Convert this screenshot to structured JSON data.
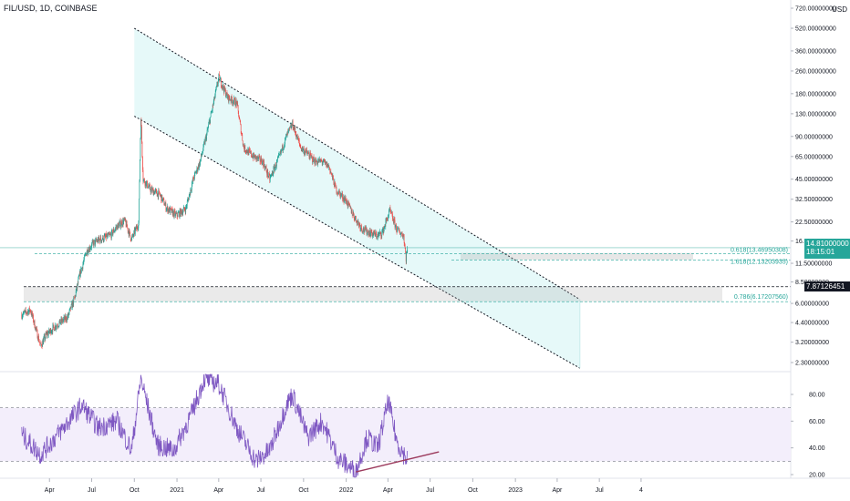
{
  "header": {
    "symbol": "FIL/USD, 1D, COINBASE",
    "currency": "USD"
  },
  "price_tags": {
    "current": "14.81000000",
    "countdown": "18:15:01",
    "level": "7.87126451"
  },
  "fib_labels": {
    "f618": "0.618(13.46950308)",
    "f1618": "1.618(12.13203935)",
    "f786": "0.786(6.17207560)"
  },
  "colors": {
    "up": "#26a69a",
    "down": "#ef5350",
    "price_line": "#26a69a",
    "channel_fill": "#e0f7f7",
    "rsi_line": "#7e57c2",
    "rsi_band": "#f3eefb",
    "trendline": "#9c3a5d"
  },
  "chart_data": [
    {
      "type": "candlestick",
      "title": "FIL/USD, 1D, COINBASE",
      "y_scale": "log",
      "y_unit": "USD",
      "y_ticks": [
        720,
        520,
        360,
        260,
        180,
        130,
        90,
        65,
        45,
        32.5,
        22.5,
        16.5,
        11.5,
        8.5,
        6,
        4.4,
        3.2,
        2.3
      ],
      "y_tick_labels": [
        "720.00000000",
        "520.00000000",
        "360.00000000",
        "260.00000000",
        "180.00000000",
        "130.00000000",
        "90.00000000",
        "65.00000000",
        "45.00000000",
        "32.50000000",
        "22.50000000",
        "16.50000000",
        "11.50000000",
        "8.50000000",
        "6.00000000",
        "4.40000000",
        "3.20000000",
        "2.30000000"
      ],
      "x_ticks": [
        "Apr",
        "Jul",
        "Oct",
        "2021",
        "Apr",
        "Jul",
        "Oct",
        "2022",
        "Apr",
        "Jul",
        "Oct",
        "2023",
        "Apr",
        "Jul",
        "4"
      ],
      "series_path": [
        [
          "2020-02-01",
          5.0
        ],
        [
          "2020-02-20",
          5.4
        ],
        [
          "2020-03-13",
          3.0
        ],
        [
          "2020-03-25",
          3.6
        ],
        [
          "2020-04-15",
          4.2
        ],
        [
          "2020-05-10",
          4.8
        ],
        [
          "2020-05-25",
          6.5
        ],
        [
          "2020-06-05",
          9.5
        ],
        [
          "2020-06-20",
          14.0
        ],
        [
          "2020-07-05",
          16.0
        ],
        [
          "2020-07-20",
          17.0
        ],
        [
          "2020-08-10",
          18.0
        ],
        [
          "2020-08-25",
          21.0
        ],
        [
          "2020-09-10",
          23.0
        ],
        [
          "2020-09-25",
          17.0
        ],
        [
          "2020-10-10",
          22.0
        ],
        [
          "2020-10-15",
          125.0
        ],
        [
          "2020-10-20",
          45.0
        ],
        [
          "2020-11-05",
          38.0
        ],
        [
          "2020-11-25",
          35.0
        ],
        [
          "2020-12-10",
          28.0
        ],
        [
          "2020-12-31",
          25.0
        ],
        [
          "2021-01-20",
          28.0
        ],
        [
          "2021-02-05",
          45.0
        ],
        [
          "2021-02-20",
          60.0
        ],
        [
          "2021-03-05",
          90.0
        ],
        [
          "2021-03-20",
          150.0
        ],
        [
          "2021-04-01",
          235.0
        ],
        [
          "2021-04-20",
          170.0
        ],
        [
          "2021-05-10",
          155.0
        ],
        [
          "2021-05-25",
          75.0
        ],
        [
          "2021-06-15",
          65.0
        ],
        [
          "2021-07-05",
          60.0
        ],
        [
          "2021-07-20",
          45.0
        ],
        [
          "2021-08-10",
          65.0
        ],
        [
          "2021-08-25",
          90.0
        ],
        [
          "2021-09-07",
          110.0
        ],
        [
          "2021-09-25",
          75.0
        ],
        [
          "2021-10-10",
          68.0
        ],
        [
          "2021-10-25",
          60.0
        ],
        [
          "2021-11-10",
          60.0
        ],
        [
          "2021-11-25",
          55.0
        ],
        [
          "2021-12-10",
          38.0
        ],
        [
          "2021-12-31",
          32.0
        ],
        [
          "2022-01-20",
          24.0
        ],
        [
          "2022-02-05",
          20.0
        ],
        [
          "2022-02-20",
          19.0
        ],
        [
          "2022-03-10",
          18.0
        ],
        [
          "2022-03-20",
          19.0
        ],
        [
          "2022-04-05",
          27.0
        ],
        [
          "2022-04-20",
          20.0
        ],
        [
          "2022-05-05",
          18.0
        ],
        [
          "2022-05-10",
          12.5
        ],
        [
          "2022-05-13",
          14.81
        ]
      ],
      "last_price": 14.81,
      "annotations": {
        "descending_channel_upper": [
          [
            "2020-10-01",
            520
          ],
          [
            "2023-05-20",
            6.4
          ]
        ],
        "descending_channel_lower": [
          [
            "2020-10-01",
            125
          ],
          [
            "2023-05-20",
            2.1
          ]
        ],
        "horizontal_level": 7.87126451,
        "fib_0618": 13.46950308,
        "fib_1618": 12.13203935,
        "fib_0786": 6.1720756
      }
    },
    {
      "type": "line",
      "name": "RSI",
      "y_ticks": [
        80,
        60,
        40,
        20
      ],
      "y_tick_labels": [
        "80.00",
        "60.00",
        "40.00",
        "20.00"
      ],
      "band": [
        30,
        70
      ],
      "values_path": [
        [
          "2020-02-01",
          50
        ],
        [
          "2020-03-13",
          35
        ],
        [
          "2020-05-01",
          55
        ],
        [
          "2020-06-10",
          72
        ],
        [
          "2020-07-15",
          55
        ],
        [
          "2020-08-25",
          60
        ],
        [
          "2020-09-25",
          38
        ],
        [
          "2020-10-15",
          92
        ],
        [
          "2020-11-20",
          42
        ],
        [
          "2020-12-25",
          38
        ],
        [
          "2021-02-01",
          65
        ],
        [
          "2021-03-01",
          92
        ],
        [
          "2021-04-01",
          88
        ],
        [
          "2021-05-10",
          55
        ],
        [
          "2021-06-20",
          30
        ],
        [
          "2021-07-20",
          38
        ],
        [
          "2021-08-25",
          72
        ],
        [
          "2021-09-07",
          80
        ],
        [
          "2021-10-10",
          48
        ],
        [
          "2021-11-10",
          60
        ],
        [
          "2021-12-15",
          32
        ],
        [
          "2022-01-22",
          22
        ],
        [
          "2022-02-15",
          48
        ],
        [
          "2022-03-10",
          40
        ],
        [
          "2022-04-02",
          75
        ],
        [
          "2022-04-20",
          45
        ],
        [
          "2022-05-12",
          31
        ],
        [
          "2022-05-13",
          33
        ]
      ],
      "trendline": [
        [
          "2022-01-22",
          22
        ],
        [
          "2022-07-20",
          37
        ]
      ]
    }
  ]
}
